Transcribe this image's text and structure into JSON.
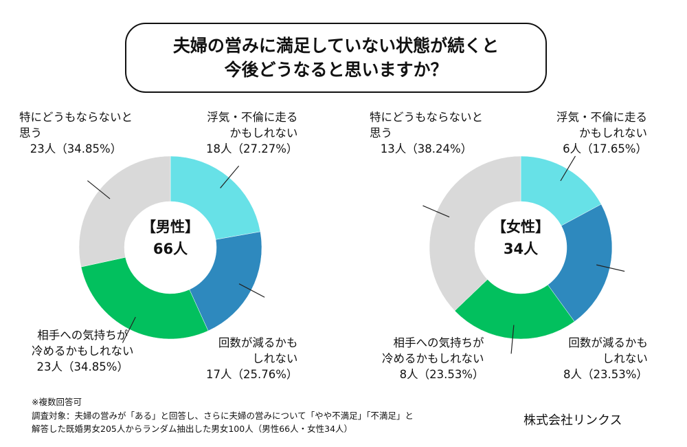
{
  "title": {
    "line1": "夫婦の営みに満足していない状態が続くと",
    "line2": "今後どうなると思いますか？"
  },
  "colors": {
    "cyan": "#67E1E7",
    "blue": "#2E89BE",
    "green": "#02C05E",
    "gray": "#D9D9D9"
  },
  "chart_data": [
    {
      "type": "pie",
      "donut": true,
      "center_title": "【男性】",
      "center_count": "66人",
      "categories": [
        "浮気・不倫に走るかもしれない",
        "回数が減るかもしれない",
        "相手への気持ちが冷めるかもしれない",
        "特にどうもならないと思う"
      ],
      "values": [
        18,
        17,
        23,
        23
      ],
      "percents": [
        27.27,
        25.76,
        34.85,
        34.85
      ],
      "labels": [
        {
          "l1": "浮気・不倫に走る",
          "l2": "かもしれない",
          "l3": "18人（27.27%）"
        },
        {
          "l1": "回数が減るかも",
          "l2": "しれない",
          "l3": "17人（25.76%）"
        },
        {
          "l1": "相手への気持ちが",
          "l2": "冷めるかもしれない",
          "l3": "23人（34.85%）"
        },
        {
          "l1": "特にどうもならないと",
          "l2": "思う",
          "l3": "23人（34.85%）"
        }
      ]
    },
    {
      "type": "pie",
      "donut": true,
      "center_title": "【女性】",
      "center_count": "34人",
      "categories": [
        "浮気・不倫に走るかもしれない",
        "回数が減るかもしれない",
        "相手への気持ちが冷めるかもしれない",
        "特にどうもならないと思う"
      ],
      "values": [
        6,
        8,
        8,
        13
      ],
      "percents": [
        17.65,
        23.53,
        23.53,
        38.24
      ],
      "labels": [
        {
          "l1": "浮気・不倫に走る",
          "l2": "かもしれない",
          "l3": "6人（17.65%）"
        },
        {
          "l1": "回数が減るかも",
          "l2": "しれない",
          "l3": "8人（23.53%）"
        },
        {
          "l1": "相手への気持ちが",
          "l2": "冷めるかもしれない",
          "l3": "8人（23.53%）"
        },
        {
          "l1": "特にどうもならないと",
          "l2": "思う",
          "l3": "13人（38.24%）"
        }
      ]
    }
  ],
  "notes": {
    "multi": "※複数回答可",
    "line1": "調査対象：夫婦の営みが「ある」と回答し、さらに夫婦の営みについて「やや不満足」「不満足」と",
    "line2": "解答した既婚男女205人からランダム抽出した男女100人（男性66人・女性34人）"
  },
  "company": "株式会社リンクス"
}
